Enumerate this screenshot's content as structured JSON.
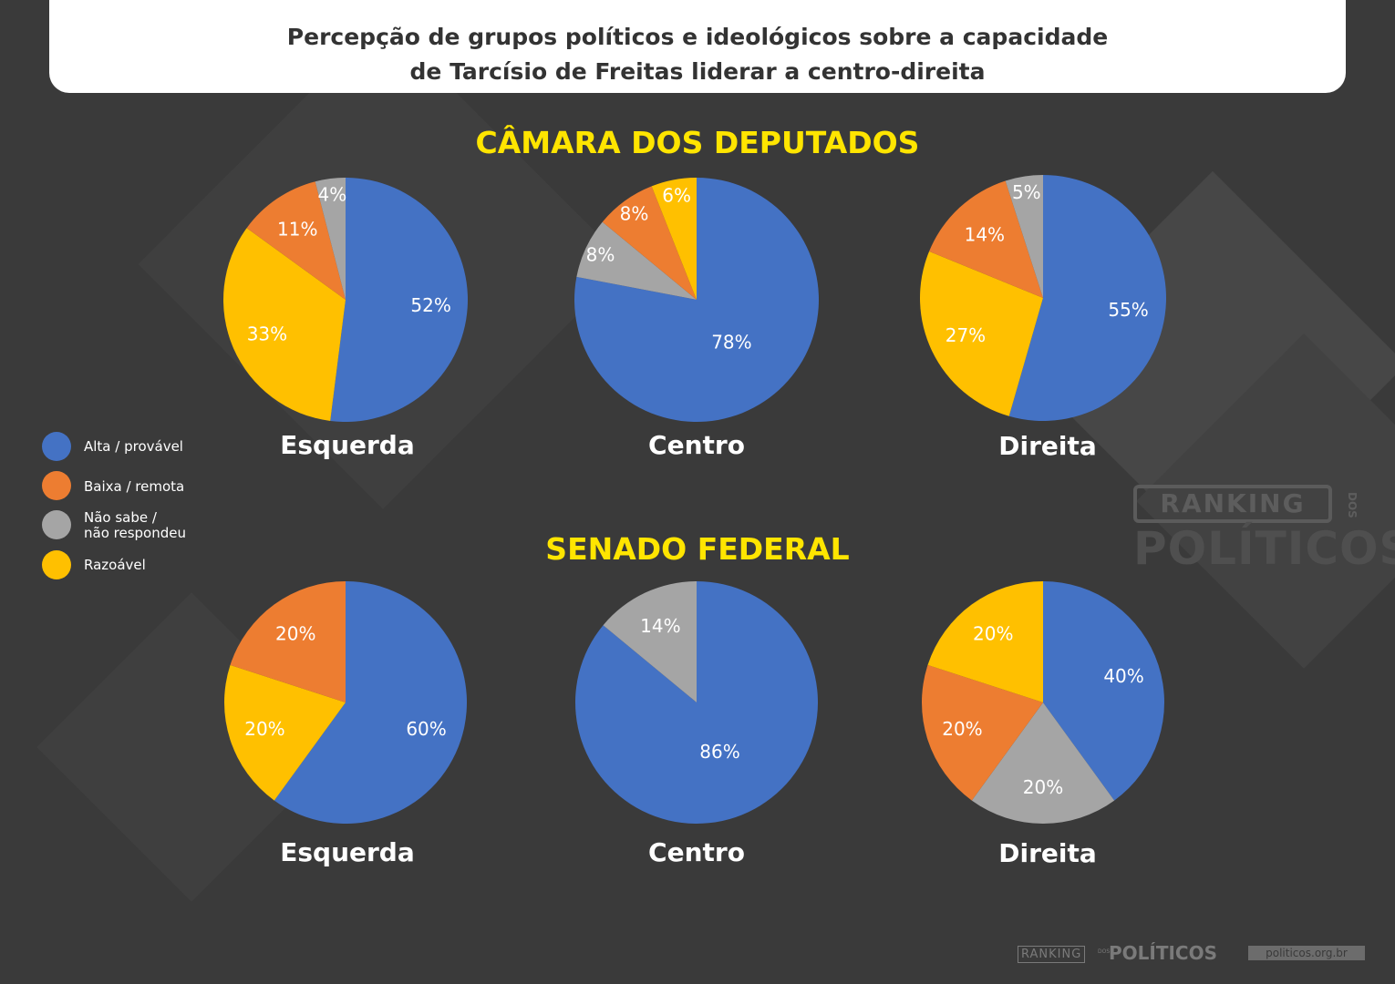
{
  "title": {
    "line1": "Percepção de grupos políticos e ideológicos sobre a capacidade",
    "line2": "de Tarcísio de Freitas liderar a centro-direita"
  },
  "colors": {
    "alta": "#4472c4",
    "baixa": "#ed7d31",
    "nao_sabe": "#a5a5a5",
    "razoavel": "#ffc000",
    "section_title": "#ffe500",
    "background": "#3a3a3a"
  },
  "legend": {
    "items": [
      {
        "key": "alta",
        "label": "Alta / provável"
      },
      {
        "key": "baixa",
        "label": "Baixa / remota"
      },
      {
        "key": "nao_sabe",
        "label_line1": "Não sabe /",
        "label_line2": "não respondeu"
      },
      {
        "key": "razoavel",
        "label": "Razoável"
      }
    ]
  },
  "watermark": {
    "ranking": "RANKING",
    "dos": "DOS",
    "politicos": "POLÍTICOS"
  },
  "footer": {
    "ranking": "RANKING",
    "dos": "DOS",
    "politicos": "POLÍTICOS",
    "site": "politicos.org.br"
  },
  "chart_data": [
    {
      "type": "pie",
      "section": "CÂMARA DOS DEPUTADOS",
      "charts": [
        {
          "title": "Esquerda",
          "slices": [
            {
              "category": "Alta / provável",
              "key": "alta",
              "value": 52,
              "label": "52%"
            },
            {
              "category": "Razoável",
              "key": "razoavel",
              "value": 33,
              "label": "33%"
            },
            {
              "category": "Baixa / remota",
              "key": "baixa",
              "value": 11,
              "label": "11%"
            },
            {
              "category": "Não sabe / não respondeu",
              "key": "nao_sabe",
              "value": 4,
              "label": "4%"
            }
          ]
        },
        {
          "title": "Centro",
          "slices": [
            {
              "category": "Alta / provável",
              "key": "alta",
              "value": 78,
              "label": "78%"
            },
            {
              "category": "Não sabe / não respondeu",
              "key": "nao_sabe",
              "value": 8,
              "label": "8%"
            },
            {
              "category": "Baixa / remota",
              "key": "baixa",
              "value": 8,
              "label": "8%"
            },
            {
              "category": "Razoável",
              "key": "razoavel",
              "value": 6,
              "label": "6%"
            }
          ]
        },
        {
          "title": "Direita",
          "slices": [
            {
              "category": "Alta / provável",
              "key": "alta",
              "value": 55,
              "label": "55%"
            },
            {
              "category": "Razoável",
              "key": "razoavel",
              "value": 27,
              "label": "27%"
            },
            {
              "category": "Baixa / remota",
              "key": "baixa",
              "value": 14,
              "label": "14%"
            },
            {
              "category": "Não sabe / não respondeu",
              "key": "nao_sabe",
              "value": 5,
              "label": "5%"
            }
          ]
        }
      ]
    },
    {
      "type": "pie",
      "section": "SENADO FEDERAL",
      "charts": [
        {
          "title": "Esquerda",
          "slices": [
            {
              "category": "Alta / provável",
              "key": "alta",
              "value": 60,
              "label": "60%"
            },
            {
              "category": "Razoável",
              "key": "razoavel",
              "value": 20,
              "label": "20%"
            },
            {
              "category": "Baixa / remota",
              "key": "baixa",
              "value": 20,
              "label": "20%"
            }
          ]
        },
        {
          "title": "Centro",
          "slices": [
            {
              "category": "Alta / provável",
              "key": "alta",
              "value": 86,
              "label": "86%"
            },
            {
              "category": "Não sabe / não respondeu",
              "key": "nao_sabe",
              "value": 14,
              "label": "14%"
            }
          ]
        },
        {
          "title": "Direita",
          "slices": [
            {
              "category": "Alta / provável",
              "key": "alta",
              "value": 40,
              "label": "40%"
            },
            {
              "category": "Não sabe / não respondeu",
              "key": "nao_sabe",
              "value": 20,
              "label": "20%"
            },
            {
              "category": "Baixa / remota",
              "key": "baixa",
              "value": 20,
              "label": "20%"
            },
            {
              "category": "Razoável",
              "key": "razoavel",
              "value": 20,
              "label": "20%"
            }
          ]
        }
      ]
    }
  ]
}
